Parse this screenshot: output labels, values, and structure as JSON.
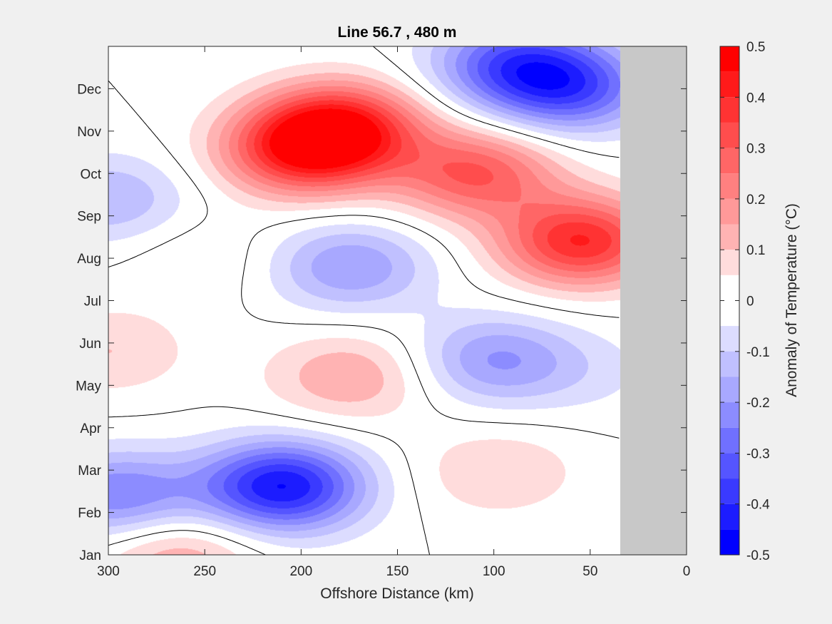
{
  "chart_data": {
    "type": "heatmap",
    "title": "Line 56.7 , 480 m",
    "xlabel": "Offshore Distance (km)",
    "ylabel": "",
    "xlim": [
      300,
      0
    ],
    "xticks": [
      300,
      250,
      200,
      150,
      100,
      50,
      0
    ],
    "ylim": [
      0,
      12
    ],
    "ytick_labels": [
      "Jan",
      "Feb",
      "Mar",
      "Apr",
      "May",
      "Jun",
      "Jul",
      "Aug",
      "Sep",
      "Oct",
      "Nov",
      "Dec"
    ],
    "ytick_values": [
      0,
      1,
      2,
      3,
      4,
      5,
      6,
      7,
      8,
      9,
      10,
      11
    ],
    "no_data_x_range": [
      35,
      0
    ],
    "colorbar": {
      "label": "Anomaly of Temperature (°C)",
      "ticks": [
        0.5,
        0.4,
        0.3,
        0.2,
        0.1,
        0,
        -0.1,
        -0.2,
        -0.3,
        -0.4,
        -0.5
      ],
      "tick_labels": [
        "0.5",
        "0.4",
        "0.3",
        "0.2",
        "0.1",
        "0",
        "-0.1",
        "-0.2",
        "-0.3",
        "-0.4",
        "-0.5"
      ],
      "levels": [
        {
          "min": 0.45,
          "max": 0.5,
          "color": "#ff0000"
        },
        {
          "min": 0.4,
          "max": 0.45,
          "color": "#ff1a1a"
        },
        {
          "min": 0.35,
          "max": 0.4,
          "color": "#ff3333"
        },
        {
          "min": 0.3,
          "max": 0.35,
          "color": "#ff4d4d"
        },
        {
          "min": 0.25,
          "max": 0.3,
          "color": "#ff6666"
        },
        {
          "min": 0.2,
          "max": 0.25,
          "color": "#ff8080"
        },
        {
          "min": 0.15,
          "max": 0.2,
          "color": "#ff9999"
        },
        {
          "min": 0.1,
          "max": 0.15,
          "color": "#ffb3b3"
        },
        {
          "min": 0.05,
          "max": 0.1,
          "color": "#ffdcdc"
        },
        {
          "min": 0,
          "max": 0.05,
          "color": "#ffffff"
        },
        {
          "min": -0.05,
          "max": 0,
          "color": "#ffffff"
        },
        {
          "min": -0.1,
          "max": -0.05,
          "color": "#dcdcff"
        },
        {
          "min": -0.15,
          "max": -0.1,
          "color": "#c0c0ff"
        },
        {
          "min": -0.2,
          "max": -0.15,
          "color": "#a8a8ff"
        },
        {
          "min": -0.25,
          "max": -0.2,
          "color": "#8c8cff"
        },
        {
          "min": -0.3,
          "max": -0.25,
          "color": "#7070ff"
        },
        {
          "min": -0.35,
          "max": -0.3,
          "color": "#5555ff"
        },
        {
          "min": -0.4,
          "max": -0.35,
          "color": "#3a3aff"
        },
        {
          "min": -0.45,
          "max": -0.4,
          "color": "#1c1cff"
        },
        {
          "min": -0.5,
          "max": -0.45,
          "color": "#0000ff"
        }
      ]
    },
    "features": [
      {
        "kind": "max",
        "x": 180,
        "y": 10.1,
        "value": 0.4
      },
      {
        "kind": "max",
        "x": 200,
        "y": 9.5,
        "value": 0.35
      },
      {
        "kind": "max",
        "x": 110,
        "y": 9.0,
        "value": 0.3
      },
      {
        "kind": "max",
        "x": 55,
        "y": 7.4,
        "value": 0.4
      },
      {
        "kind": "max",
        "x": 265,
        "y": 0.0,
        "value": 0.15
      },
      {
        "kind": "max",
        "x": 300,
        "y": 4.8,
        "value": 0.1
      },
      {
        "kind": "max",
        "x": 175,
        "y": 4.2,
        "value": 0.15
      },
      {
        "kind": "max",
        "x": 98,
        "y": 1.95,
        "value": 0.1
      },
      {
        "kind": "max",
        "x": 250,
        "y": 7.0,
        "value": 0.05
      },
      {
        "kind": "min",
        "x": 210,
        "y": 1.6,
        "value": -0.45
      },
      {
        "kind": "min",
        "x": 295,
        "y": 1.4,
        "value": -0.25
      },
      {
        "kind": "min",
        "x": 60,
        "y": 11.0,
        "value": -0.3
      },
      {
        "kind": "min",
        "x": 90,
        "y": 11.6,
        "value": -0.3
      },
      {
        "kind": "min",
        "x": 300,
        "y": 8.4,
        "value": -0.15
      },
      {
        "kind": "min",
        "x": 175,
        "y": 6.8,
        "value": -0.2
      },
      {
        "kind": "min",
        "x": 100,
        "y": 4.6,
        "value": -0.2
      },
      {
        "kind": "min",
        "x": 50,
        "y": 4.3,
        "value": -0.05
      }
    ]
  }
}
